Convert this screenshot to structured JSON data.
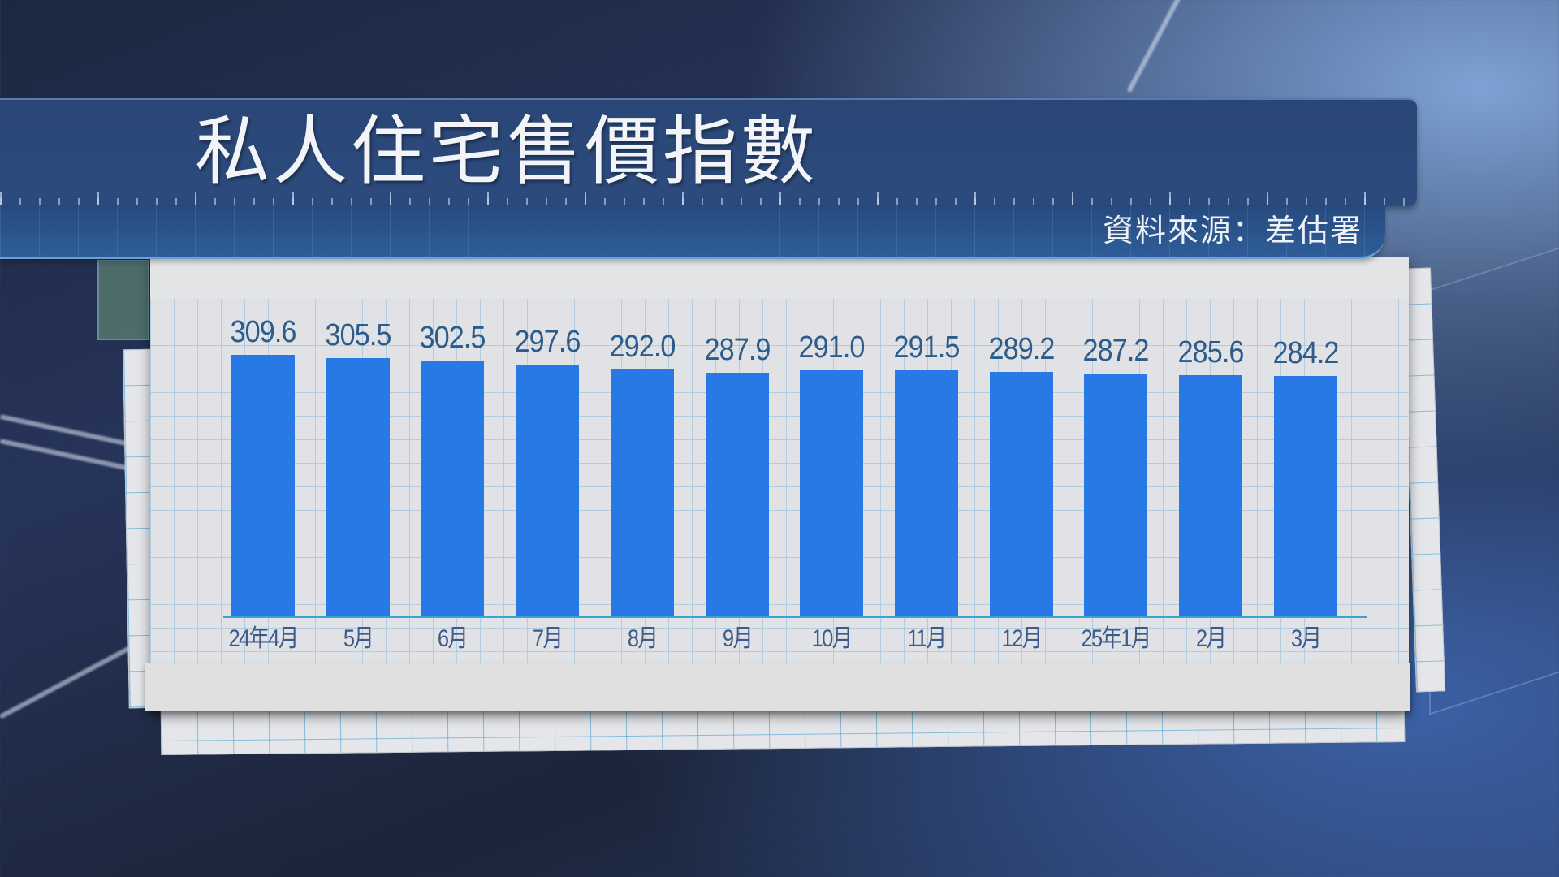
{
  "header": {
    "title": "私人住宅售價指數",
    "source": "資料來源：差估署"
  },
  "colors": {
    "bar": "#2878e6",
    "header_bg": "#2a4676",
    "value_text": "#2e5c8a",
    "category_text": "#3c5a8a",
    "baseline": "#3fa0d8"
  },
  "chart_data": {
    "type": "bar",
    "title": "私人住宅售價指數",
    "subtitle": "資料來源：差估署",
    "xlabel": "",
    "ylabel": "",
    "categories": [
      "24年4月",
      "5月",
      "6月",
      "7月",
      "8月",
      "9月",
      "10月",
      "11月",
      "12月",
      "25年1月",
      "2月",
      "3月"
    ],
    "values": [
      309.6,
      305.5,
      302.5,
      297.6,
      292.0,
      287.9,
      291.0,
      291.5,
      289.2,
      287.2,
      285.6,
      284.2
    ],
    "value_labels": [
      "309.6",
      "305.5",
      "302.5",
      "297.6",
      "292.0",
      "287.9",
      "291.0",
      "291.5",
      "289.2",
      "287.2",
      "285.6",
      "284.2"
    ],
    "grid": false,
    "legend": "none",
    "data_labels": "above-bar"
  }
}
